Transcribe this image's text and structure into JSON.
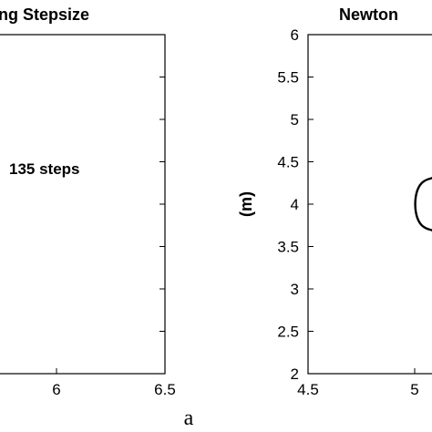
{
  "chart_data": [
    {
      "type": "line",
      "title": "ng Stepsize",
      "annotation": "135 steps",
      "x_ticks": [
        "6",
        "6.5"
      ],
      "xlim": [
        5.5,
        6.5
      ]
    },
    {
      "type": "line",
      "title": "Newton",
      "ylabel": "(m)",
      "x_ticks": [
        "4.5",
        "5"
      ],
      "y_ticks": [
        "2",
        "2.5",
        "3",
        "3.5",
        "4",
        "4.5",
        "5",
        "5.5",
        "6"
      ],
      "xlim": [
        4.5,
        5.1
      ],
      "ylim": [
        2,
        6
      ],
      "series": [
        {
          "points": [
            [
              5.1,
              4.32
            ],
            [
              5.04,
              4.28
            ],
            [
              5.01,
              4.17
            ],
            [
              5.0,
              4.0
            ],
            [
              5.01,
              3.83
            ],
            [
              5.04,
              3.72
            ],
            [
              5.1,
              3.68
            ]
          ]
        }
      ]
    }
  ],
  "caption": "a"
}
